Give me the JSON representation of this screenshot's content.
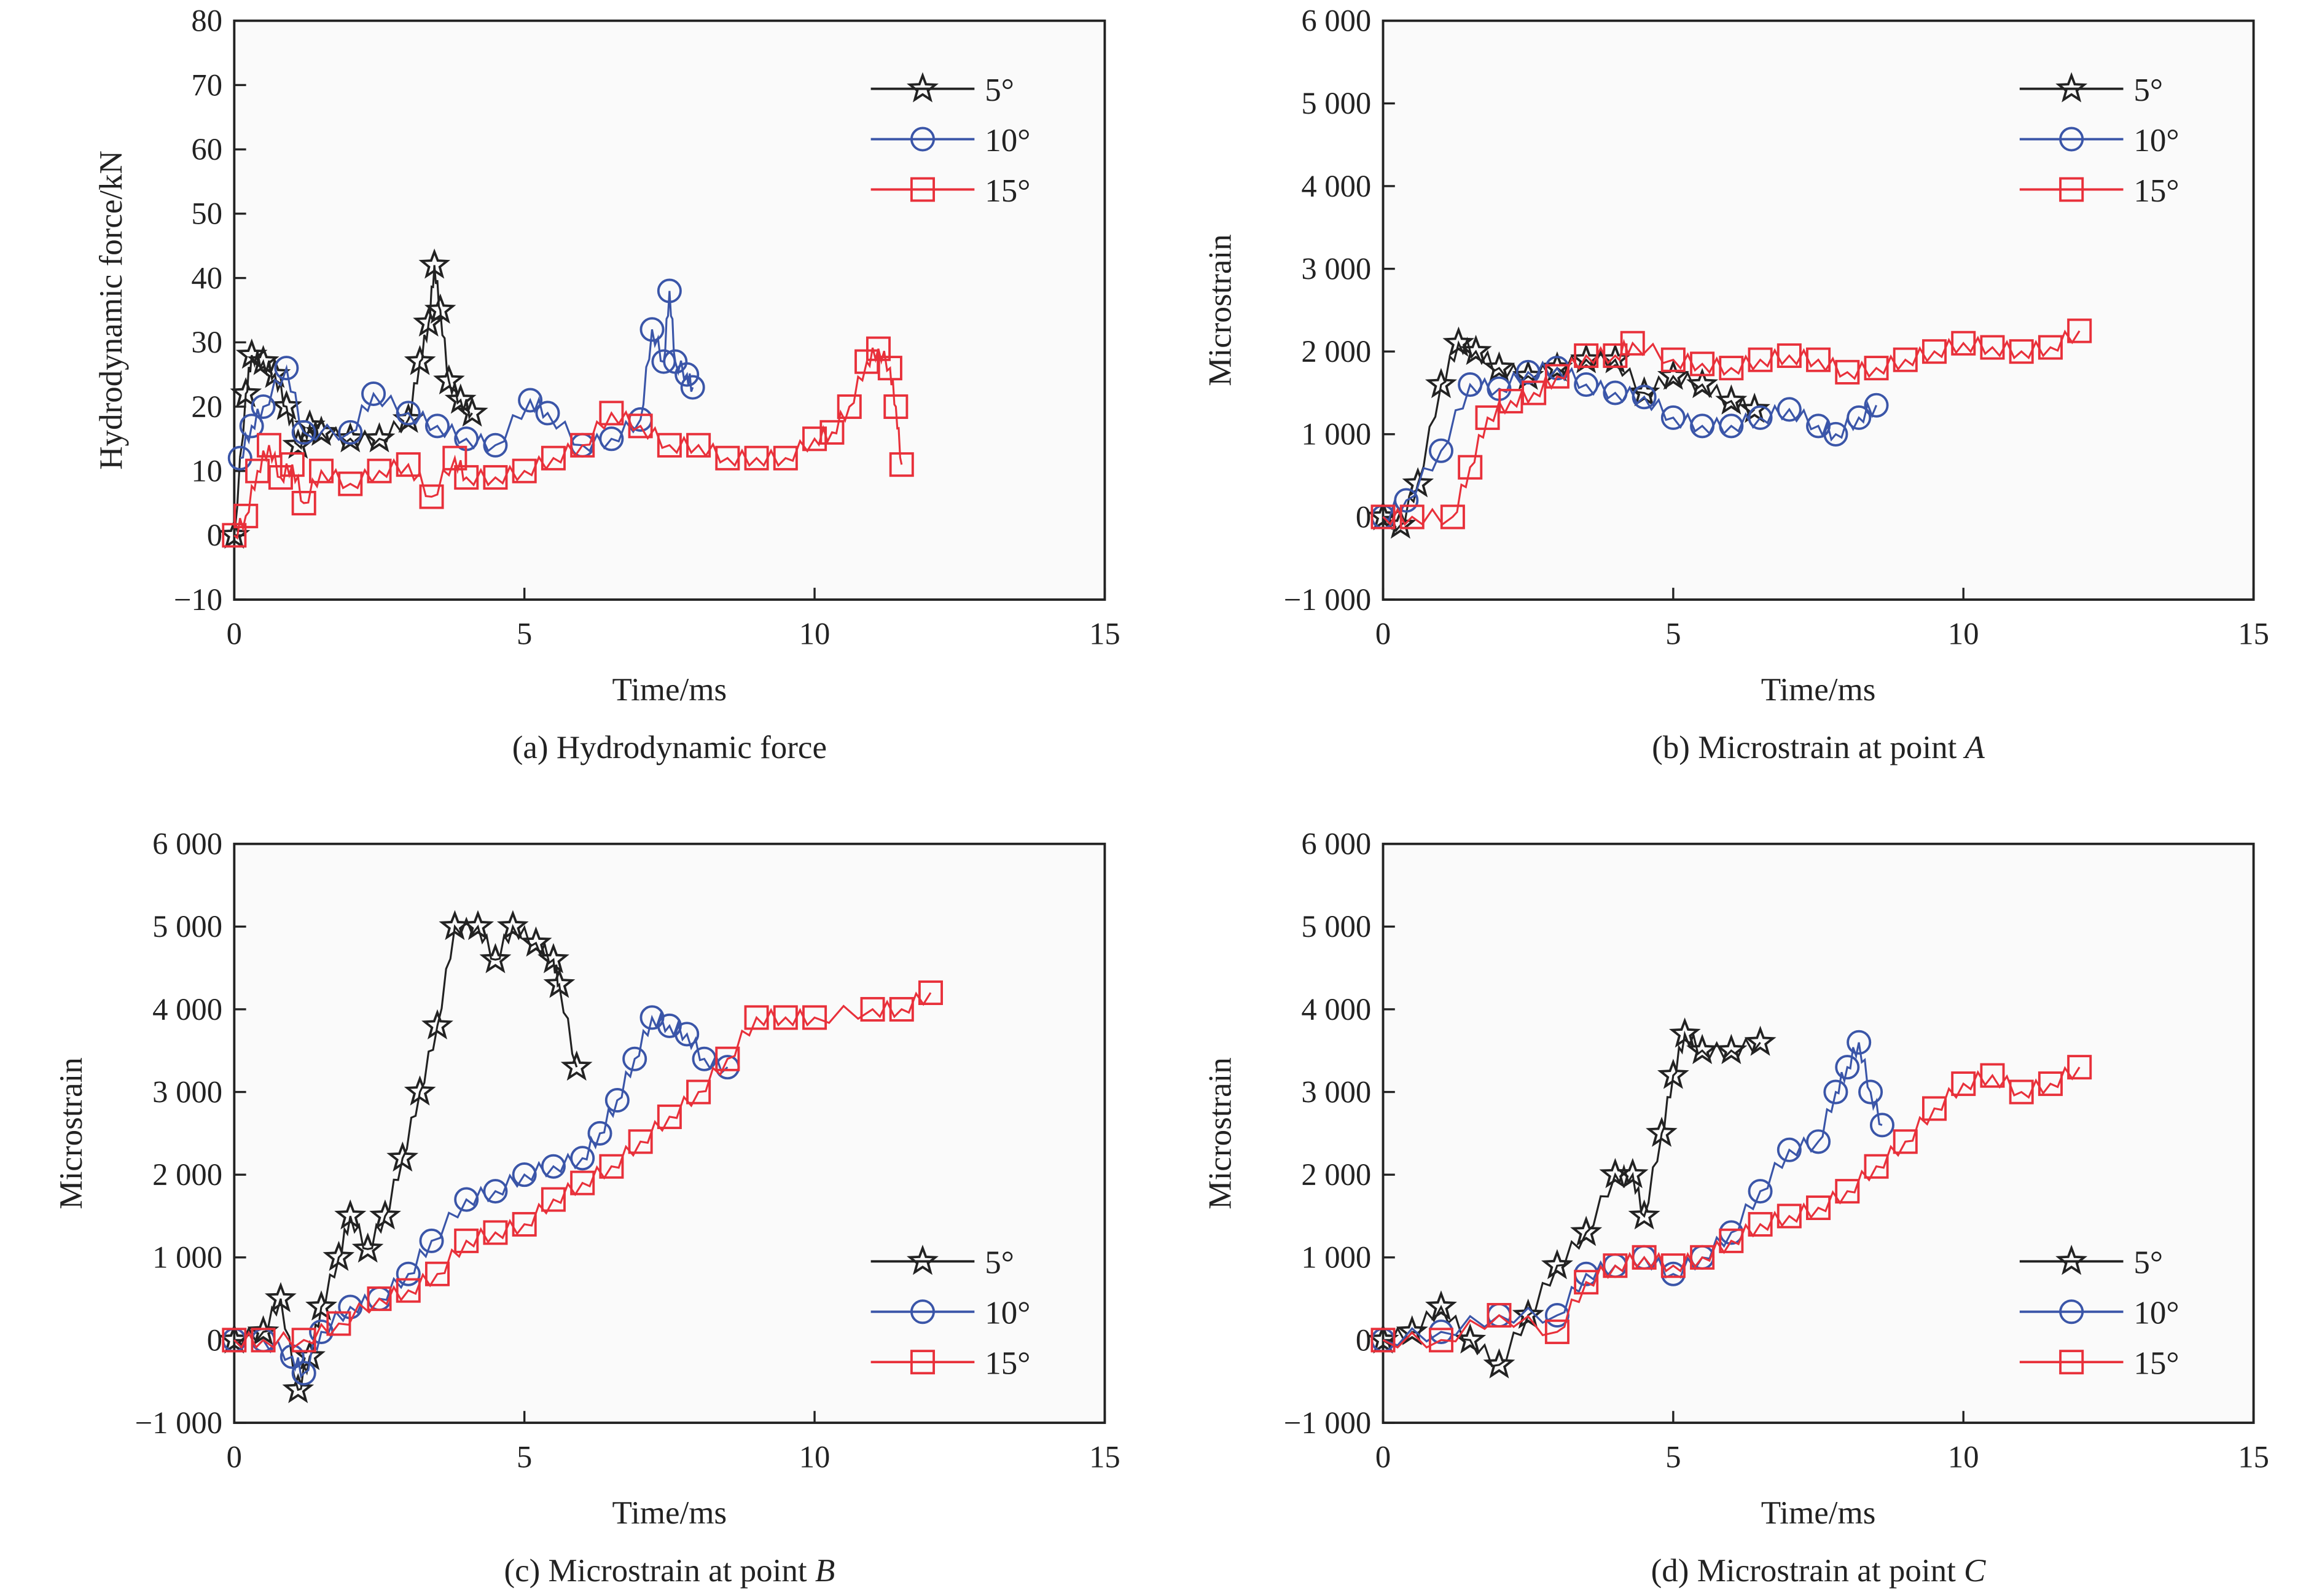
{
  "colors": {
    "5deg": "#222222",
    "10deg": "#3a55a8",
    "15deg": "#e8303a"
  },
  "chart_data": [
    {
      "type": "line",
      "caption_prefix": "(a) Hydrodynamic force",
      "caption_italic": "",
      "xlabel": "Time/ms",
      "ylabel": "Hydrodynamic force/kN",
      "xlim": [
        0,
        15
      ],
      "ylim": [
        -10,
        80
      ],
      "xticks": [
        0,
        5,
        10,
        15
      ],
      "xtick_labels": [
        "0",
        "5",
        "10",
        "15"
      ],
      "yticks": [
        -10,
        0,
        10,
        20,
        30,
        40,
        50,
        60,
        70,
        80
      ],
      "ytick_labels": [
        "−10",
        "0",
        "10",
        "20",
        "30",
        "40",
        "50",
        "60",
        "70",
        "80"
      ],
      "legend": "top-right",
      "series": [
        {
          "name": "5°",
          "marker": "star",
          "color": "#222222",
          "x": [
            0,
            0.2,
            0.3,
            0.5,
            0.7,
            0.9,
            1.1,
            1.3,
            1.5,
            2,
            2.5,
            3,
            3.2,
            3.35,
            3.45,
            3.55,
            3.7,
            3.9,
            4.1
          ],
          "y": [
            0,
            22,
            28,
            27,
            25,
            20,
            14,
            17,
            16,
            15,
            15,
            18,
            27,
            33,
            42,
            35,
            24,
            21,
            19
          ]
        },
        {
          "name": "10°",
          "marker": "circle",
          "color": "#3a55a8",
          "x": [
            0.1,
            0.3,
            0.5,
            0.9,
            1.2,
            2,
            2.4,
            3,
            3.5,
            4,
            4.5,
            5.1,
            5.4,
            6,
            6.5,
            7,
            7.2,
            7.4,
            7.5,
            7.6,
            7.8,
            7.9
          ],
          "y": [
            12,
            17,
            20,
            26,
            16,
            16,
            22,
            19,
            17,
            15,
            14,
            21,
            19,
            14,
            15,
            18,
            32,
            27,
            38,
            27,
            25,
            23
          ]
        },
        {
          "name": "15°",
          "marker": "square",
          "color": "#e8303a",
          "x": [
            0,
            0.2,
            0.4,
            0.6,
            0.8,
            1,
            1.2,
            1.5,
            2,
            2.5,
            3,
            3.4,
            3.8,
            4,
            4.5,
            5,
            5.5,
            6,
            6.5,
            7,
            7.5,
            8,
            8.5,
            9,
            9.5,
            10,
            10.3,
            10.6,
            10.9,
            11.1,
            11.3,
            11.4,
            11.5
          ],
          "y": [
            0,
            3,
            10,
            14,
            9,
            11,
            5,
            10,
            8,
            10,
            11,
            6,
            12,
            9,
            9,
            10,
            12,
            14,
            19,
            17,
            14,
            14,
            12,
            12,
            12,
            15,
            16,
            20,
            27,
            29,
            26,
            20,
            11
          ]
        }
      ]
    },
    {
      "type": "line",
      "caption_prefix": "(b) Microstrain at point ",
      "caption_italic": "A",
      "xlabel": "Time/ms",
      "ylabel": "Microstrain",
      "xlim": [
        0,
        15
      ],
      "ylim": [
        -1000,
        6000
      ],
      "xticks": [
        0,
        5,
        10,
        15
      ],
      "xtick_labels": [
        "0",
        "5",
        "10",
        "15"
      ],
      "yticks": [
        -1000,
        0,
        1000,
        2000,
        3000,
        4000,
        5000,
        6000
      ],
      "ytick_labels": [
        "−1 000",
        "0",
        "1 000",
        "2 000",
        "3 000",
        "4 000",
        "5 000",
        "6 000"
      ],
      "legend": "top-right",
      "series": [
        {
          "name": "5°",
          "marker": "star",
          "color": "#222222",
          "x": [
            0,
            0.3,
            0.6,
            1,
            1.3,
            1.6,
            2,
            2.5,
            3,
            3.5,
            4,
            4.5,
            5,
            5.5,
            6,
            6.4
          ],
          "y": [
            0,
            -100,
            400,
            1600,
            2100,
            2000,
            1800,
            1700,
            1800,
            1900,
            1900,
            1500,
            1700,
            1600,
            1400,
            1300
          ]
        },
        {
          "name": "10°",
          "marker": "circle",
          "color": "#3a55a8",
          "x": [
            0,
            0.4,
            1,
            1.5,
            2,
            2.5,
            3,
            3.5,
            4,
            4.5,
            5,
            5.5,
            6,
            6.5,
            7,
            7.5,
            7.8,
            8.2,
            8.5
          ],
          "y": [
            0,
            200,
            800,
            1600,
            1550,
            1750,
            1800,
            1600,
            1500,
            1450,
            1200,
            1100,
            1100,
            1200,
            1300,
            1100,
            1000,
            1200,
            1350
          ]
        },
        {
          "name": "15°",
          "marker": "square",
          "color": "#e8303a",
          "x": [
            0,
            0.5,
            1.2,
            1.5,
            1.8,
            2.2,
            2.6,
            3,
            3.5,
            4,
            4.3,
            5,
            5.5,
            6,
            6.5,
            7,
            7.5,
            8,
            8.5,
            9,
            9.5,
            10,
            10.5,
            11,
            11.5,
            12
          ],
          "y": [
            0,
            0,
            0,
            600,
            1200,
            1400,
            1500,
            1700,
            1950,
            1950,
            2100,
            1900,
            1850,
            1800,
            1900,
            1950,
            1900,
            1750,
            1800,
            1900,
            2000,
            2100,
            2050,
            2000,
            2050,
            2250
          ]
        }
      ]
    },
    {
      "type": "line",
      "caption_prefix": "(c) Microstrain at point ",
      "caption_italic": "B",
      "xlabel": "Time/ms",
      "ylabel": "Microstrain",
      "xlim": [
        0,
        15
      ],
      "ylim": [
        -1000,
        6000
      ],
      "xticks": [
        0,
        5,
        10,
        15
      ],
      "xtick_labels": [
        "0",
        "5",
        "10",
        "15"
      ],
      "yticks": [
        -1000,
        0,
        1000,
        2000,
        3000,
        4000,
        5000,
        6000
      ],
      "ytick_labels": [
        "−1 000",
        "0",
        "1 000",
        "2 000",
        "3 000",
        "4 000",
        "5 000",
        "6 000"
      ],
      "legend": "bottom-right",
      "series": [
        {
          "name": "5°",
          "marker": "star",
          "color": "#222222",
          "x": [
            0,
            0.5,
            0.8,
            1.1,
            1.3,
            1.5,
            1.8,
            2,
            2.3,
            2.6,
            2.9,
            3.2,
            3.5,
            3.8,
            4.2,
            4.5,
            4.8,
            5.2,
            5.5,
            5.6,
            5.9
          ],
          "y": [
            0,
            100,
            500,
            -600,
            -200,
            400,
            1000,
            1500,
            1100,
            1500,
            2200,
            3000,
            3800,
            5000,
            5000,
            4600,
            5000,
            4800,
            4600,
            4300,
            3300
          ]
        },
        {
          "name": "10°",
          "marker": "circle",
          "color": "#3a55a8",
          "x": [
            0,
            0.5,
            1,
            1.2,
            1.5,
            2,
            2.5,
            3,
            3.4,
            4,
            4.5,
            5,
            5.5,
            6,
            6.3,
            6.6,
            6.9,
            7.2,
            7.5,
            7.8,
            8.1,
            8.5
          ],
          "y": [
            0,
            0,
            -200,
            -400,
            100,
            400,
            500,
            800,
            1200,
            1700,
            1800,
            2000,
            2100,
            2200,
            2500,
            2900,
            3400,
            3900,
            3800,
            3700,
            3400,
            3300
          ]
        },
        {
          "name": "15°",
          "marker": "square",
          "color": "#e8303a",
          "x": [
            0,
            0.5,
            1.2,
            1.8,
            2.5,
            3,
            3.5,
            4,
            4.5,
            5,
            5.5,
            6,
            6.5,
            7,
            7.5,
            8,
            8.5,
            9,
            9.5,
            10,
            11,
            11.5,
            12
          ],
          "y": [
            0,
            0,
            0,
            200,
            500,
            600,
            800,
            1200,
            1300,
            1400,
            1700,
            1900,
            2100,
            2400,
            2700,
            3000,
            3400,
            3900,
            3900,
            3900,
            4000,
            4000,
            4200
          ]
        }
      ]
    },
    {
      "type": "line",
      "caption_prefix": "(d) Microstrain at point ",
      "caption_italic": "C",
      "xlabel": "Time/ms",
      "ylabel": "Microstrain",
      "xlim": [
        0,
        15
      ],
      "ylim": [
        -1000,
        6000
      ],
      "xticks": [
        0,
        5,
        10,
        15
      ],
      "xtick_labels": [
        "0",
        "5",
        "10",
        "15"
      ],
      "yticks": [
        -1000,
        0,
        1000,
        2000,
        3000,
        4000,
        5000,
        6000
      ],
      "ytick_labels": [
        "−1 000",
        "0",
        "1 000",
        "2 000",
        "3 000",
        "4 000",
        "5 000",
        "6 000"
      ],
      "legend": "bottom-right",
      "series": [
        {
          "name": "5°",
          "marker": "star",
          "color": "#222222",
          "x": [
            0,
            0.5,
            1,
            1.5,
            2,
            2.5,
            3,
            3.5,
            4,
            4.3,
            4.5,
            4.8,
            5,
            5.2,
            5.5,
            6,
            6.5
          ],
          "y": [
            0,
            100,
            400,
            0,
            -300,
            300,
            900,
            1300,
            2000,
            2000,
            1500,
            2500,
            3200,
            3700,
            3500,
            3500,
            3600
          ]
        },
        {
          "name": "10°",
          "marker": "circle",
          "color": "#3a55a8",
          "x": [
            0,
            1,
            2,
            3,
            3.5,
            4,
            4.5,
            5,
            5.5,
            6,
            6.5,
            7,
            7.5,
            7.8,
            8,
            8.2,
            8.4,
            8.6
          ],
          "y": [
            0,
            100,
            300,
            300,
            800,
            900,
            1000,
            800,
            1000,
            1300,
            1800,
            2300,
            2400,
            3000,
            3300,
            3600,
            3000,
            2600
          ]
        },
        {
          "name": "15°",
          "marker": "square",
          "color": "#e8303a",
          "x": [
            0,
            1,
            2,
            3,
            3.5,
            4,
            4.5,
            5,
            5.5,
            6,
            6.5,
            7,
            7.5,
            8,
            8.5,
            9,
            9.5,
            10,
            10.5,
            11,
            11.5,
            12
          ],
          "y": [
            0,
            0,
            300,
            100,
            700,
            900,
            1000,
            900,
            1000,
            1200,
            1400,
            1500,
            1600,
            1800,
            2100,
            2400,
            2800,
            3100,
            3200,
            3000,
            3100,
            3300
          ]
        }
      ]
    }
  ]
}
